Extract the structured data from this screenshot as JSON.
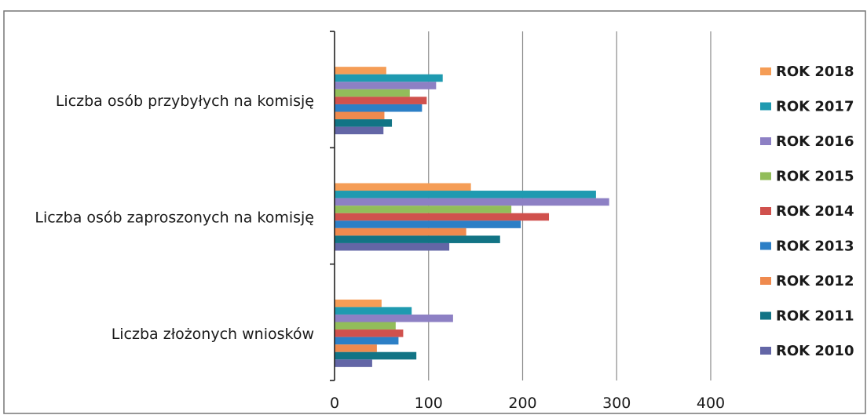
{
  "chart_data": {
    "type": "bar",
    "orientation": "horizontal",
    "categories": [
      "Liczba osób przybyłych na komisję",
      "Liczba osób zaproszonych na komisję",
      "Liczba złożonych wniosków"
    ],
    "series": [
      {
        "name": "ROK 2018",
        "color": "#F59D56",
        "values": [
          55,
          145,
          50
        ]
      },
      {
        "name": "ROK 2017",
        "color": "#1F9AB0",
        "values": [
          115,
          278,
          82
        ]
      },
      {
        "name": "ROK 2016",
        "color": "#8D80C4",
        "values": [
          108,
          292,
          126
        ]
      },
      {
        "name": "ROK 2015",
        "color": "#92BD5A",
        "values": [
          80,
          188,
          65
        ]
      },
      {
        "name": "ROK 2014",
        "color": "#D0514D",
        "values": [
          98,
          228,
          73
        ]
      },
      {
        "name": "ROK 2013",
        "color": "#2C7FC6",
        "values": [
          93,
          198,
          68
        ]
      },
      {
        "name": "ROK 2012",
        "color": "#EF8A4E",
        "values": [
          53,
          140,
          45
        ]
      },
      {
        "name": "ROK 2011",
        "color": "#127485",
        "values": [
          61,
          176,
          87
        ]
      },
      {
        "name": "ROK 2010",
        "color": "#6366A6",
        "values": [
          52,
          122,
          40
        ]
      }
    ],
    "xlim": [
      0,
      400
    ],
    "xticks": [
      0,
      100,
      200,
      300,
      400
    ],
    "grid": true,
    "legend_position": "right",
    "title": "",
    "xlabel": "",
    "ylabel": ""
  }
}
